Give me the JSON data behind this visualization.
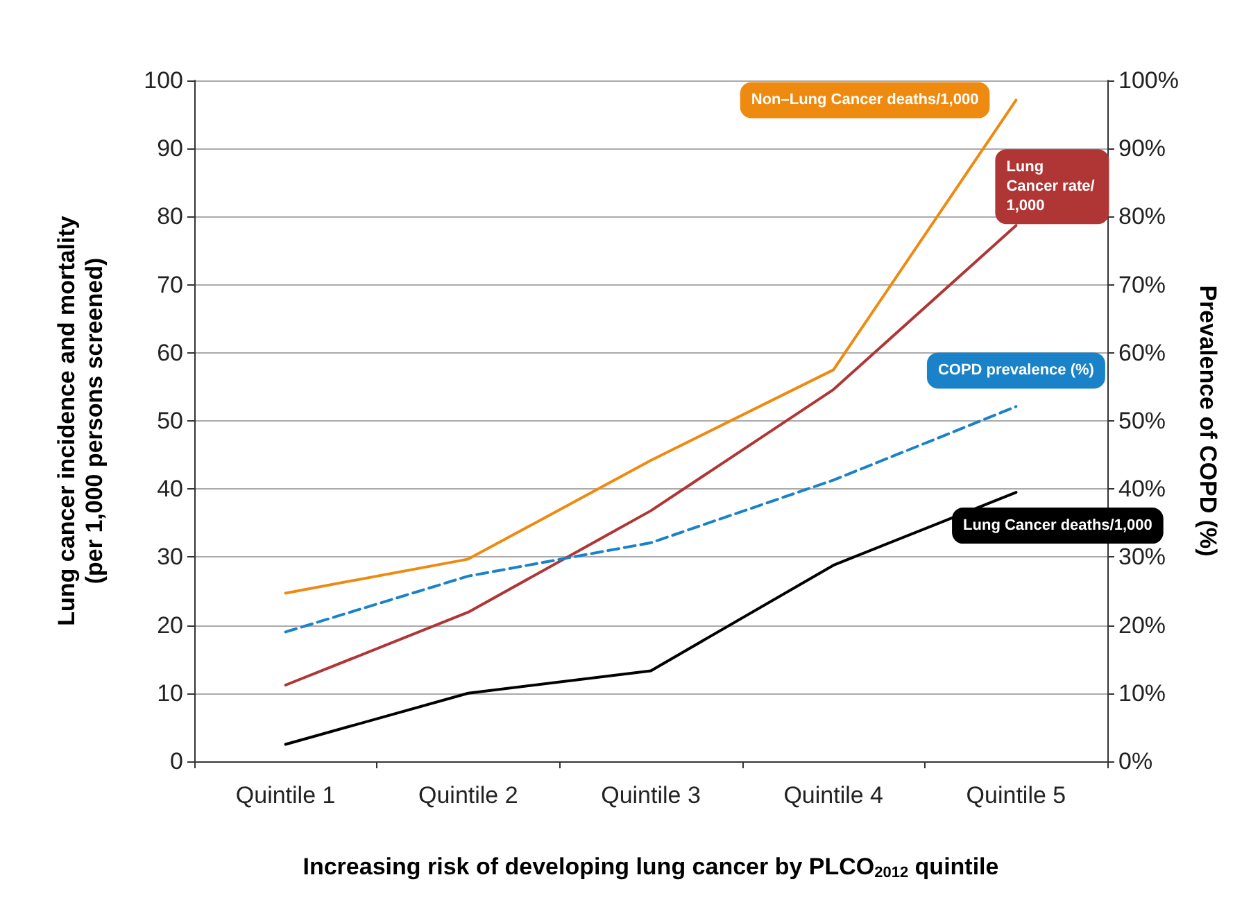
{
  "chart_data": {
    "type": "line",
    "xlabel": "Increasing risk of developing lung cancer by PLCO$_{2012}$ quintile",
    "ylabel": "Lung cancer incidence and mortality\n(per 1,000 persons screened)",
    "y2label": "Prevalence of COPD (%)",
    "categories": [
      "Quintile 1",
      "Quintile 2",
      "Quintile 3",
      "Quintile 4",
      "Quintile 5"
    ],
    "series": [
      {
        "name": "Non–Lung Cancer deaths/1,000",
        "color": "#ee8a10",
        "values": [
          24.7,
          29.7,
          44.2,
          57.5,
          97.1
        ]
      },
      {
        "name": "Lung Cancer rate/1,000",
        "color": "#b03535",
        "values": [
          11.2,
          21.9,
          36.8,
          54.6,
          78.7
        ]
      },
      {
        "name": "COPD prevalence (%)",
        "color": "#1a82c8",
        "values": [
          19,
          27.2,
          32.1,
          41.3,
          52.1
        ],
        "axis": "y2",
        "line_style": "dashed"
      },
      {
        "name": "Lung Cancer deaths/1,000",
        "color": "#000000",
        "values": [
          2.5,
          10,
          13.3,
          28.8,
          39.5
        ]
      }
    ],
    "ylim": [
      0,
      100
    ],
    "yticks": [
      0,
      10,
      20,
      30,
      40,
      50,
      60,
      70,
      80,
      90,
      100
    ],
    "y2lim": [
      0,
      100
    ],
    "y2ticks": [
      {
        "value": 0,
        "label": "0%"
      },
      {
        "value": 10,
        "label": "10%"
      },
      {
        "value": 20,
        "label": "20%"
      },
      {
        "value": 30,
        "label": "30%"
      },
      {
        "value": 40,
        "label": "40%"
      },
      {
        "value": 50,
        "label": "50%"
      },
      {
        "value": 60,
        "label": "60%"
      },
      {
        "value": 70,
        "label": "70%"
      },
      {
        "value": 80,
        "label": "80%"
      },
      {
        "value": 90,
        "label": "90%"
      },
      {
        "value": 100,
        "label": "100%"
      }
    ],
    "grid": "y",
    "legend": false,
    "marker": "none",
    "line_style": "solid"
  }
}
